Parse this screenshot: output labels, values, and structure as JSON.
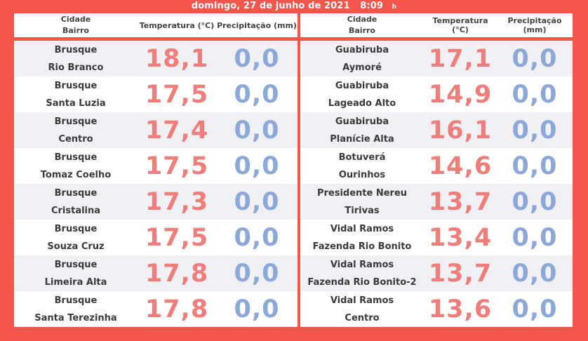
{
  "header": {
    "date": "domingo, 27 de junho de 2021",
    "time": "8:09",
    "suffix": "h"
  },
  "columns": {
    "city": "Cidade",
    "district": "Bairro",
    "temperature": "Temperatura (°C)",
    "precipitation": "Precipitação (mm)"
  },
  "left_rows": [
    {
      "city": "Brusque",
      "district": "Rio Branco",
      "temp": "18,1",
      "precip": "0,0"
    },
    {
      "city": "Brusque",
      "district": "Santa Luzia",
      "temp": "17,5",
      "precip": "0,0"
    },
    {
      "city": "Brusque",
      "district": "Centro",
      "temp": "17,4",
      "precip": "0,0"
    },
    {
      "city": "Brusque",
      "district": "Tomaz Coelho",
      "temp": "17,5",
      "precip": "0,0"
    },
    {
      "city": "Brusque",
      "district": "Cristalina",
      "temp": "17,3",
      "precip": "0,0"
    },
    {
      "city": "Brusque",
      "district": "Souza Cruz",
      "temp": "17,5",
      "precip": "0,0"
    },
    {
      "city": "Brusque",
      "district": "Limeira Alta",
      "temp": "17,8",
      "precip": "0,0"
    },
    {
      "city": "Brusque",
      "district": "Santa Terezinha",
      "temp": "17,8",
      "precip": "0,0"
    }
  ],
  "right_rows": [
    {
      "city": "Guabiruba",
      "district": "Aymoré",
      "temp": "17,1",
      "precip": "0,0"
    },
    {
      "city": "Guabiruba",
      "district": "Lageado Alto",
      "temp": "14,9",
      "precip": "0,0"
    },
    {
      "city": "Guabiruba",
      "district": "Planície Alta",
      "temp": "16,1",
      "precip": "0,0"
    },
    {
      "city": "Botuverá",
      "district": "Ourinhos",
      "temp": "14,6",
      "precip": "0,0"
    },
    {
      "city": "Presidente Nereu",
      "district": "Tirivas",
      "temp": "13,7",
      "precip": "0,0"
    },
    {
      "city": "Vidal Ramos",
      "district": "Fazenda Rio Bonito",
      "temp": "13,4",
      "precip": "0,0"
    },
    {
      "city": "Vidal Ramos",
      "district": "Fazenda Rio Bonito-2",
      "temp": "13,7",
      "precip": "0,0"
    },
    {
      "city": "Vidal Ramos",
      "district": "Centro",
      "temp": "13,6",
      "precip": "0,0"
    }
  ],
  "colors": {
    "frame": "#f5554b",
    "temperature": "#ef7d7a",
    "precipitation": "#8ba8d8"
  }
}
